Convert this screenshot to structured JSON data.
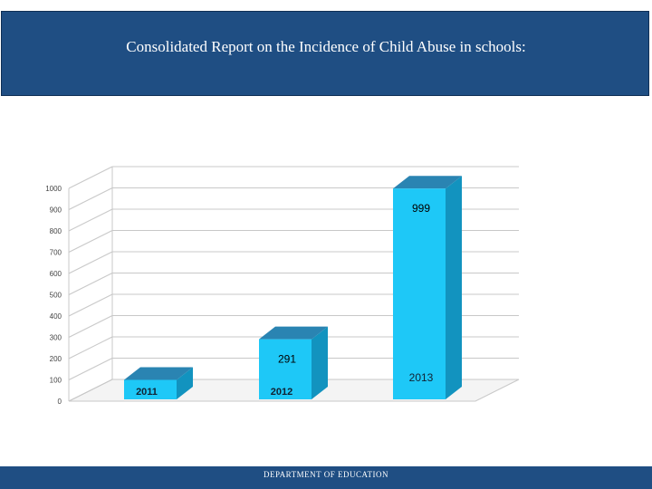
{
  "header": {
    "title": "Consolidated Report on the Incidence of Child Abuse in schools:"
  },
  "footer": {
    "text": "DEPARTMENT OF EDUCATION"
  },
  "chart_data": {
    "type": "bar",
    "title": "",
    "xlabel": "",
    "ylabel": "",
    "categories": [
      "2011",
      "2012",
      "2013"
    ],
    "values": [
      100,
      291,
      999
    ],
    "data_labels": [
      "",
      "291",
      "999"
    ],
    "y_ticks": [
      0,
      100,
      200,
      300,
      400,
      500,
      600,
      700,
      800,
      900,
      1000
    ],
    "ylim": [
      0,
      1000
    ],
    "grid": true,
    "colors": {
      "bar_front": "#1ec8f7",
      "bar_side": "#1293bf",
      "bar_top": "#2a84b2",
      "grid": "#c8c8c8",
      "header_bg": "#1f4e83"
    }
  }
}
